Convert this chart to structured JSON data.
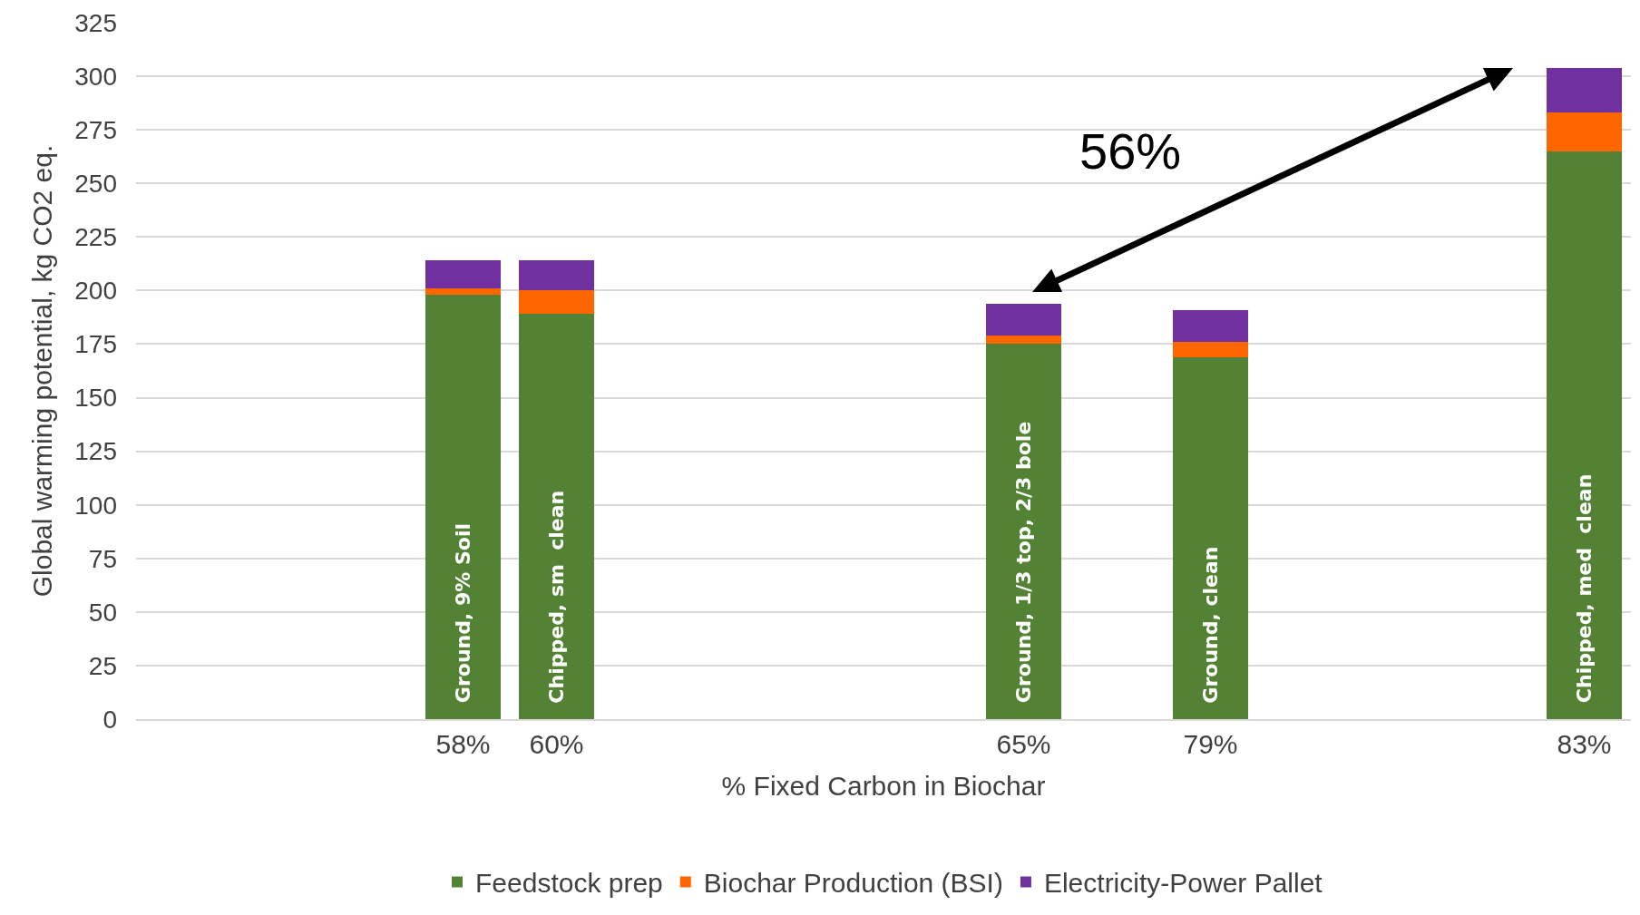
{
  "chart_data": {
    "type": "bar",
    "stacked": true,
    "xlabel": "% Fixed Carbon in Biochar",
    "ylabel": "Global warming potential, kg CO2 eq.",
    "categories": [
      null,
      null,
      null,
      "58%",
      "60%",
      null,
      null,
      null,
      null,
      "65%",
      null,
      "79%",
      null,
      null,
      null,
      "83%"
    ],
    "series": [
      {
        "name": "Feedstock prep",
        "color": "#548235",
        "values": [
          null,
          null,
          null,
          198,
          189,
          null,
          null,
          null,
          null,
          175,
          null,
          169,
          null,
          null,
          null,
          265
        ]
      },
      {
        "name": "Biochar Production (BSI)",
        "color": "#ff6600",
        "values": [
          null,
          null,
          null,
          3,
          11,
          null,
          null,
          null,
          null,
          4,
          null,
          7,
          null,
          null,
          null,
          18
        ]
      },
      {
        "name": "Electricity-Power Pallet",
        "color": "#7030a0",
        "values": [
          null,
          null,
          null,
          13,
          14,
          null,
          null,
          null,
          null,
          15,
          null,
          15,
          null,
          null,
          null,
          21
        ]
      }
    ],
    "ylim": [
      0,
      325
    ],
    "yticks": [
      0,
      25,
      50,
      75,
      100,
      125,
      150,
      175,
      200,
      225,
      250,
      275,
      300,
      325
    ],
    "grid": "y",
    "legend": "bottom",
    "annotations": [
      "56%",
      "Ground, 9% Soil",
      "Chipped, sm  clean",
      "Ground, 1/3 top, 2/3 bole",
      "Ground, clean",
      "Chipped, med  clean"
    ]
  }
}
